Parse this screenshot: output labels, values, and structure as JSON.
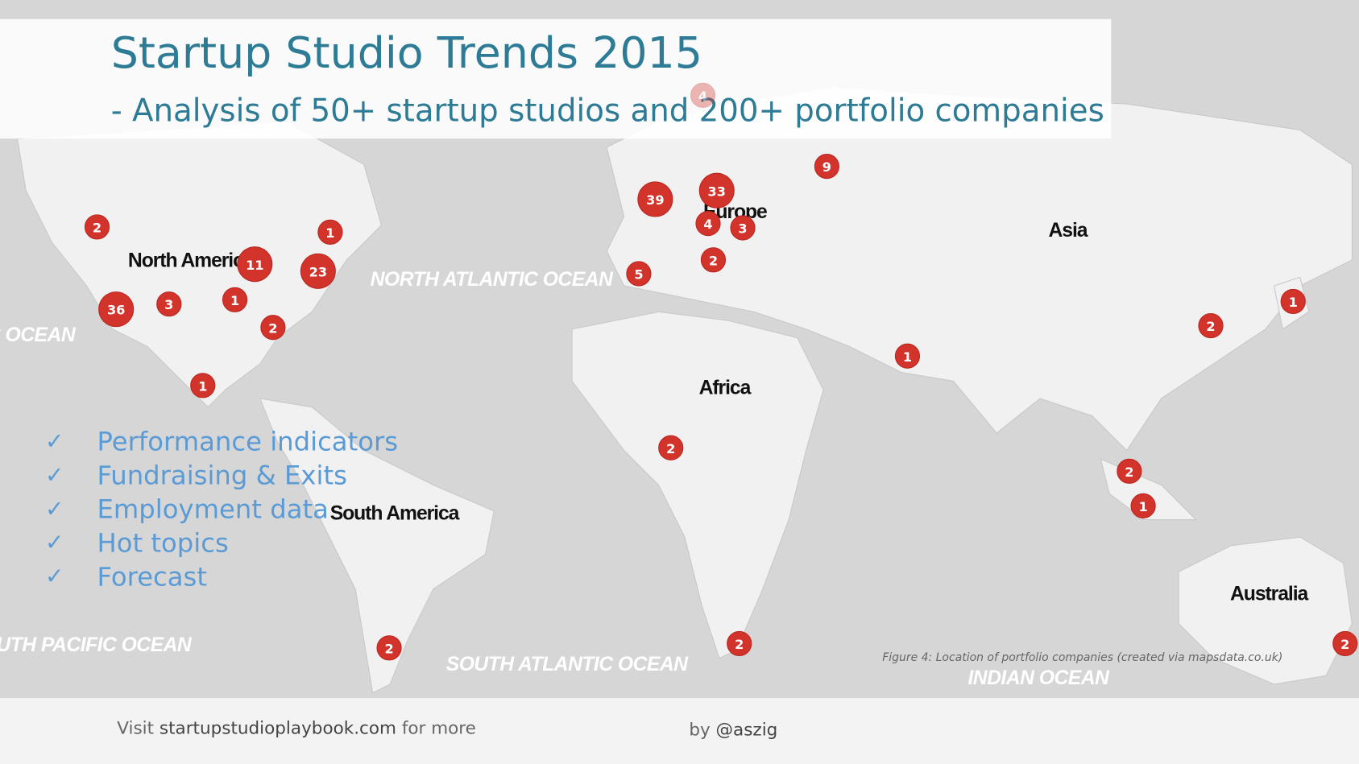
{
  "header": {
    "title": "Startup Studio Trends 2015",
    "subtitle": "- Analysis of 50+ startup studios and 200+ portfolio companies"
  },
  "checklist": [
    "Performance indicators",
    "Fundraising & Exits",
    "Employment data",
    "Hot topics",
    "Forecast"
  ],
  "map": {
    "regions": [
      "North America",
      "Europe",
      "Asia",
      "Africa",
      "South America",
      "Australia"
    ],
    "oceans": [
      "NORTH ATLANTIC OCEAN",
      "SOUTH ATLANTIC OCEAN",
      "SOUTH PACIFIC OCEAN",
      "INDIAN OCEAN",
      "PACIFIC OCEAN"
    ],
    "markers": [
      2,
      1,
      11,
      23,
      36,
      3,
      1,
      2,
      1,
      39,
      33,
      4,
      3,
      2,
      5,
      9,
      4,
      1,
      2,
      1,
      2,
      2,
      1,
      2,
      2,
      2
    ],
    "caption": "Figure 4: Location of portfolio companies (created via mapsdata.co.uk)"
  },
  "footer": {
    "visit_prefix": "Visit",
    "site": "startupstudioplaybook.com",
    "visit_suffix": "for more",
    "by_prefix": "by",
    "author": "@aszig"
  }
}
